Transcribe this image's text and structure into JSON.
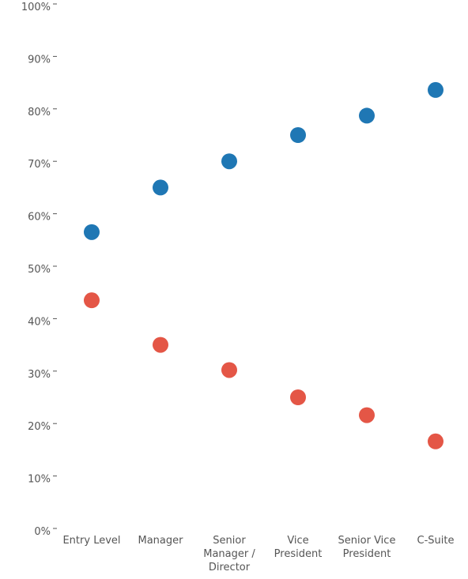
{
  "chart_data": {
    "type": "scatter",
    "title": "",
    "xlabel": "",
    "ylabel": "",
    "y_tick_labels": [
      "0%",
      "10%",
      "20%",
      "30%",
      "40%",
      "50%",
      "60%",
      "70%",
      "80%",
      "90%",
      "100%"
    ],
    "ylim": [
      0,
      100
    ],
    "grid": false,
    "legend": "none",
    "categories": [
      [
        "Entry Level"
      ],
      [
        "Manager"
      ],
      [
        "Senior",
        "Manager /",
        "Director"
      ],
      [
        "Vice",
        "President"
      ],
      [
        "Senior Vice",
        "President"
      ],
      [
        "C-Suite"
      ]
    ],
    "series": [
      {
        "color": "#1f77b4",
        "values": [
          56.5,
          65,
          70,
          75,
          78.7,
          83.6
        ]
      },
      {
        "color": "#e45646",
        "values": [
          43.5,
          35,
          30.2,
          25,
          21.6,
          16.6
        ]
      }
    ]
  }
}
